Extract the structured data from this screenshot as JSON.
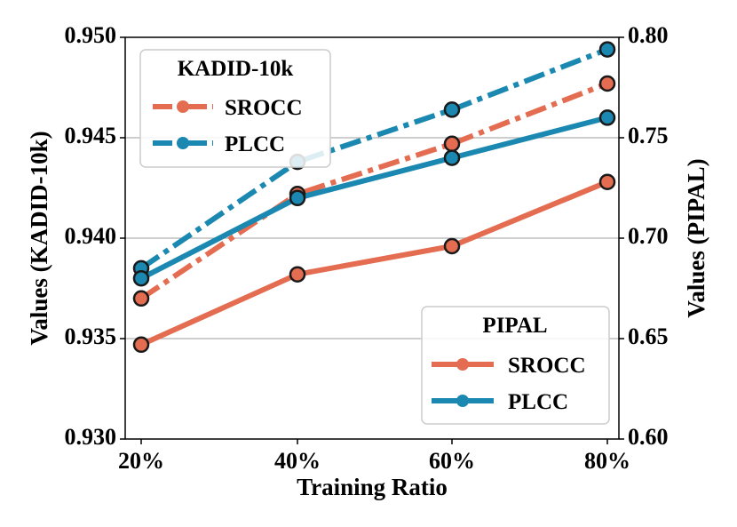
{
  "chart_data": {
    "type": "line",
    "xlabel": "Training Ratio",
    "categories": [
      "20%",
      "40%",
      "60%",
      "80%"
    ],
    "left_axis": {
      "label": "Values (KADID-10k)",
      "ylim": [
        0.93,
        0.95
      ],
      "ticks": [
        "0.930",
        "0.935",
        "0.940",
        "0.945",
        "0.950"
      ],
      "tick_values": [
        0.93,
        0.935,
        0.94,
        0.945,
        0.95
      ]
    },
    "right_axis": {
      "label": "Values (PIPAL)",
      "ylim": [
        0.6,
        0.8
      ],
      "ticks": [
        "0.60",
        "0.65",
        "0.70",
        "0.75",
        "0.80"
      ],
      "tick_values": [
        0.6,
        0.65,
        0.7,
        0.75,
        0.8
      ]
    },
    "grid": true,
    "series": [
      {
        "name": "SROCC",
        "group": "KADID-10k",
        "axis": "left",
        "style": "dashdot",
        "color": "#e46c51",
        "values": [
          0.937,
          0.9422,
          0.9447,
          0.9477
        ]
      },
      {
        "name": "PLCC",
        "group": "KADID-10k",
        "axis": "left",
        "style": "dashdot",
        "color": "#1a88b0",
        "values": [
          0.9385,
          0.9438,
          0.9464,
          0.9494
        ]
      },
      {
        "name": "SROCC",
        "group": "PIPAL",
        "axis": "right",
        "style": "solid",
        "color": "#e46c51",
        "values": [
          0.647,
          0.682,
          0.696,
          0.728
        ]
      },
      {
        "name": "PLCC",
        "group": "PIPAL",
        "axis": "right",
        "style": "solid",
        "color": "#1a88b0",
        "values": [
          0.68,
          0.72,
          0.74,
          0.76
        ]
      }
    ],
    "legends": [
      {
        "title": "KADID-10k",
        "location": "top-left",
        "entries": [
          "SROCC",
          "PLCC"
        ]
      },
      {
        "title": "PIPAL",
        "location": "bottom-right",
        "entries": [
          "SROCC",
          "PLCC"
        ]
      }
    ]
  }
}
